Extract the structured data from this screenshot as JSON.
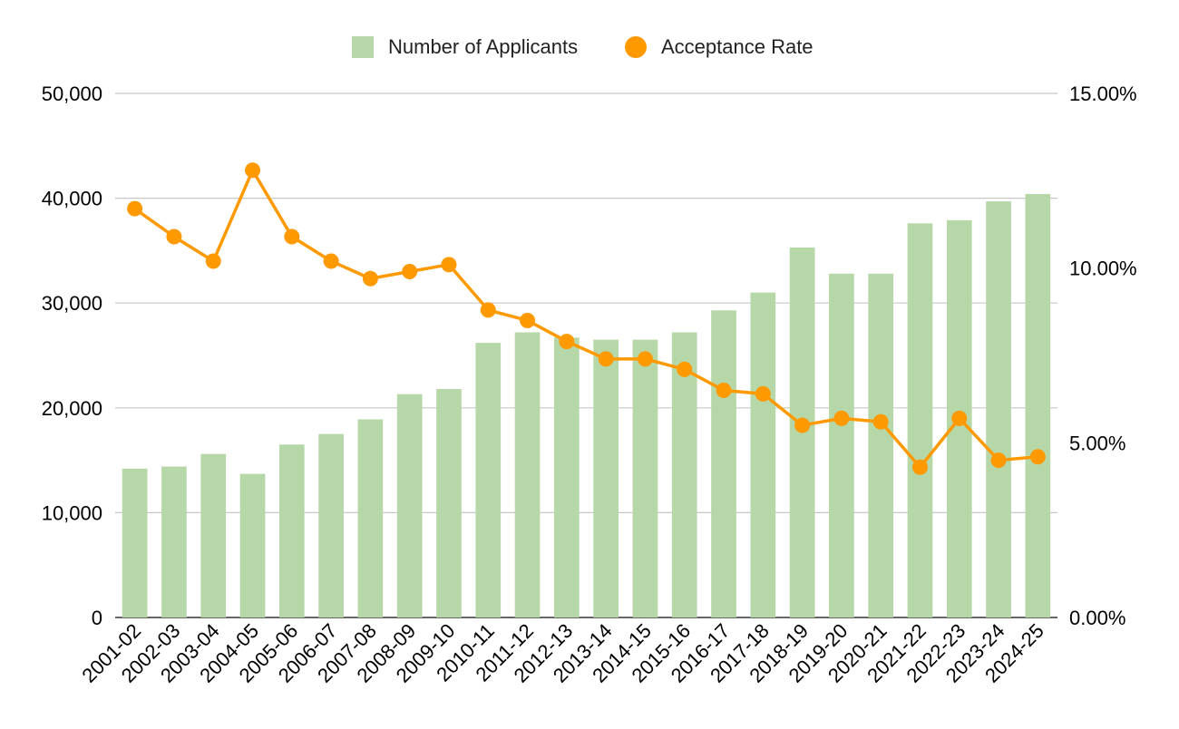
{
  "chart_data": {
    "type": "bar",
    "categories": [
      "2001-02",
      "2002-03",
      "2003-04",
      "2004-05",
      "2005-06",
      "2006-07",
      "2007-08",
      "2008-09",
      "2009-10",
      "2010-11",
      "2011-12",
      "2012-13",
      "2013-14",
      "2014-15",
      "2015-16",
      "2016-17",
      "2017-18",
      "2018-19",
      "2019-20",
      "2020-21",
      "2021-22",
      "2022-23",
      "2023-24",
      "2024-25"
    ],
    "series": [
      {
        "name": "Number of Applicants",
        "type": "bar",
        "axis": "left",
        "color": "#b6d7a8",
        "values": [
          14200,
          14400,
          15600,
          13700,
          16500,
          17500,
          18900,
          21300,
          21800,
          26200,
          27200,
          26700,
          26500,
          26500,
          27200,
          29300,
          31000,
          35300,
          32800,
          32800,
          37600,
          37900,
          39700,
          40400
        ]
      },
      {
        "name": "Acceptance Rate",
        "type": "line",
        "axis": "right",
        "color": "#ff9900",
        "values": [
          11.7,
          10.9,
          10.2,
          12.8,
          10.9,
          10.2,
          9.7,
          9.9,
          10.1,
          8.8,
          8.5,
          7.9,
          7.4,
          7.4,
          7.1,
          6.5,
          6.4,
          5.5,
          5.7,
          5.6,
          4.3,
          5.7,
          4.5,
          4.6
        ]
      }
    ],
    "y_left": {
      "ylim": [
        0,
        50000
      ],
      "ticks": [
        "0",
        "10,000",
        "20,000",
        "30,000",
        "40,000",
        "50,000"
      ]
    },
    "y_right": {
      "ylim": [
        0,
        15
      ],
      "ticks": [
        "0.00%",
        "5.00%",
        "10.00%",
        "15.00%"
      ]
    },
    "legend": {
      "position": "top-center",
      "items": [
        "Number of Applicants",
        "Acceptance Rate"
      ]
    },
    "grid": true
  }
}
